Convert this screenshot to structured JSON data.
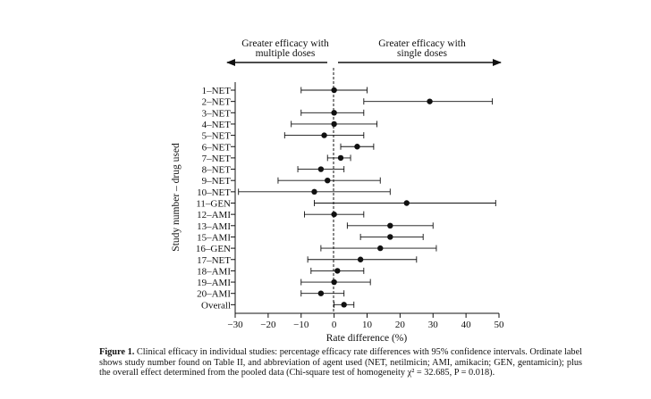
{
  "chart_data": {
    "type": "forest",
    "title": "",
    "direction_labels": {
      "left": [
        "Greater efficacy with",
        "multiple doses"
      ],
      "right": [
        "Greater efficacy with",
        "single doses"
      ]
    },
    "xlabel": "Rate difference (%)",
    "ylabel": "Study number – drug used",
    "xlim": [
      -30,
      50
    ],
    "xticks": [
      "-30",
      "-20",
      "-10",
      "0",
      "10",
      "20",
      "30",
      "40",
      "50"
    ],
    "reference_line": 0,
    "studies": [
      {
        "label": "1–NET",
        "estimate": 0,
        "lower": -10,
        "upper": 10
      },
      {
        "label": "2–NET",
        "estimate": 29,
        "lower": 9,
        "upper": 48
      },
      {
        "label": "3–NET",
        "estimate": 0,
        "lower": -10,
        "upper": 9
      },
      {
        "label": "4–NET",
        "estimate": 0,
        "lower": -13,
        "upper": 13
      },
      {
        "label": "5–NET",
        "estimate": -3,
        "lower": -15,
        "upper": 9
      },
      {
        "label": "6–NET",
        "estimate": 7,
        "lower": 2,
        "upper": 12
      },
      {
        "label": "7–NET",
        "estimate": 2,
        "lower": -2,
        "upper": 5
      },
      {
        "label": "8–NET",
        "estimate": -4,
        "lower": -11,
        "upper": 3
      },
      {
        "label": "9–NET",
        "estimate": -2,
        "lower": -17,
        "upper": 14
      },
      {
        "label": "10–NET",
        "estimate": -6,
        "lower": -29,
        "upper": 17
      },
      {
        "label": "11–GEN",
        "estimate": 22,
        "lower": -6,
        "upper": 49
      },
      {
        "label": "12–AMI",
        "estimate": 0,
        "lower": -9,
        "upper": 9
      },
      {
        "label": "13–AMI",
        "estimate": 17,
        "lower": 4,
        "upper": 30
      },
      {
        "label": "15–AMI",
        "estimate": 17,
        "lower": 8,
        "upper": 27
      },
      {
        "label": "16–GEN",
        "estimate": 14,
        "lower": -4,
        "upper": 31
      },
      {
        "label": "17–NET",
        "estimate": 8,
        "lower": -8,
        "upper": 25
      },
      {
        "label": "18–AMI",
        "estimate": 1,
        "lower": -7,
        "upper": 9
      },
      {
        "label": "19–AMI",
        "estimate": 0,
        "lower": -10,
        "upper": 11
      },
      {
        "label": "20–AMI",
        "estimate": -4,
        "lower": -10,
        "upper": 3
      },
      {
        "label": "Overall",
        "estimate": 3,
        "lower": 0,
        "upper": 6
      }
    ]
  },
  "caption": {
    "figure_label": "Figure 1.",
    "text": "Clinical efficacy in individual studies: percentage efficacy rate differences with 95% confidence intervals. Ordinate label shows study number found on Table II, and abbreviation of agent used (NET, netilmicin; AMI, amikacin; GEN, gentamicin); plus the overall effect determined from the pooled data (Chi-square test of homogeneity χ² = 32.685, P = 0.018)."
  }
}
